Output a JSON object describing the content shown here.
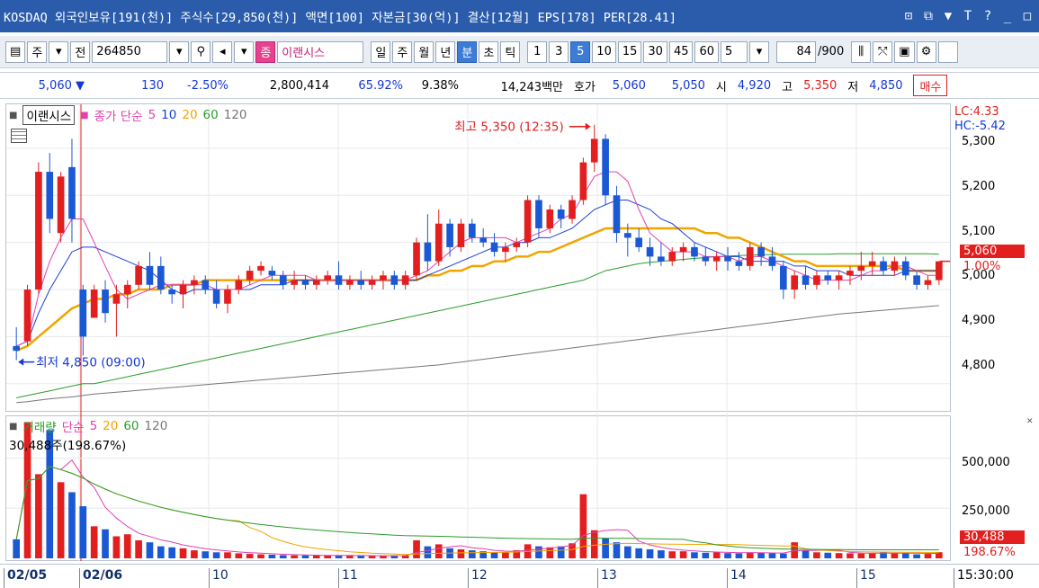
{
  "titlebar": {
    "title": "KOSDAQ 외국인보유[191(천)] 주식수[29,850(천)] 액면[100] 자본금[30(억)] 결산[12월] EPS[178] PER[28.41]",
    "icons": [
      "restore-icon",
      "copy-icon",
      "pin-icon",
      "text-icon",
      "help-icon",
      "minimize-icon",
      "maximize-icon"
    ],
    "icon_glyphs": [
      "⊡",
      "⧉",
      "▼",
      "T",
      "?",
      "_",
      "□"
    ]
  },
  "toolbar": {
    "mode1": "주",
    "mode2": "전",
    "code": "264850",
    "stock_name": "이랜시스",
    "badge": "종",
    "periods": [
      "일",
      "주",
      "월",
      "년",
      "분",
      "초",
      "틱"
    ],
    "active_period": "분",
    "intervals": [
      "1",
      "3",
      "5",
      "10",
      "15",
      "30",
      "45",
      "60"
    ],
    "active_interval": "5",
    "count_select": "5",
    "count": "84",
    "count_total": "/900"
  },
  "quote": {
    "price": "5,060",
    "change": "130",
    "change_pct": "-2.50%",
    "volume": "2,800,414",
    "ratio1": "65.92%",
    "ratio2": "9.38%",
    "amount": "14,243백만",
    "bid_label": "호가",
    "bid1": "5,060",
    "bid2": "5,050",
    "open_label": "시",
    "open": "4,920",
    "high_label": "고",
    "high": "5,350",
    "low_label": "저",
    "low": "4,850",
    "buy_label": "매수"
  },
  "price_panel": {
    "stock_label": "이랜시스",
    "ma_title": "종가 단순",
    "ma_periods": [
      "5",
      "10",
      "20",
      "60",
      "120"
    ],
    "high_annotation": "최고 5,350 (12:35)",
    "low_annotation": "최저 4,850 (09:00)",
    "lc": "LC:4.33",
    "hc": "HC:-5.42",
    "last_price": "5,060",
    "last_pct": "1.00%",
    "y_ticks": [
      "5,300",
      "5,200",
      "5,100",
      "5,000",
      "4,900",
      "4,800"
    ]
  },
  "volume_panel": {
    "title": "거래량",
    "ma_title": "단순",
    "ma_periods": [
      "5",
      "20",
      "60",
      "120"
    ],
    "summary": "30,488주(198.67%)",
    "y_ticks": [
      "500,000",
      "250,000"
    ],
    "last_volume": "30,488",
    "last_pct": "198.67%"
  },
  "date_axis": [
    "02/05",
    "02/06",
    "10",
    "11",
    "12",
    "13",
    "14",
    "15"
  ],
  "time_label": "15:30:00",
  "colors": {
    "up": "#e31e1e",
    "down": "#1b58d4",
    "ma5": "#e040b0",
    "ma10": "#1b3fd4",
    "ma20": "#f0a500",
    "ma60": "#2a9c2a",
    "ma120": "#777777"
  },
  "chart_data": {
    "type": "candlestick",
    "ylim": [
      4750,
      5380
    ],
    "candles": [
      {
        "o": 4880,
        "h": 4920,
        "l": 4850,
        "c": 4870
      },
      {
        "o": 4890,
        "h": 5010,
        "l": 4880,
        "c": 5000
      },
      {
        "o": 5000,
        "h": 5270,
        "l": 4990,
        "c": 5250
      },
      {
        "o": 5250,
        "h": 5290,
        "l": 5120,
        "c": 5150
      },
      {
        "o": 5120,
        "h": 5250,
        "l": 5100,
        "c": 5240
      },
      {
        "o": 5260,
        "h": 5320,
        "l": 5100,
        "c": 5150
      },
      {
        "o": 5000,
        "h": 5010,
        "l": 4860,
        "c": 4900
      },
      {
        "o": 4940,
        "h": 5010,
        "l": 4940,
        "c": 5000
      },
      {
        "o": 5000,
        "h": 5020,
        "l": 4930,
        "c": 4950
      },
      {
        "o": 4970,
        "h": 5010,
        "l": 4900,
        "c": 4990
      },
      {
        "o": 4990,
        "h": 5020,
        "l": 4960,
        "c": 5010
      },
      {
        "o": 5010,
        "h": 5060,
        "l": 5000,
        "c": 5050
      },
      {
        "o": 5050,
        "h": 5080,
        "l": 5000,
        "c": 5010
      },
      {
        "o": 5050,
        "h": 5070,
        "l": 4990,
        "c": 5000
      },
      {
        "o": 5000,
        "h": 5010,
        "l": 4970,
        "c": 4990
      },
      {
        "o": 4990,
        "h": 5020,
        "l": 4960,
        "c": 5010
      },
      {
        "o": 5010,
        "h": 5030,
        "l": 4990,
        "c": 5020
      },
      {
        "o": 5020,
        "h": 5030,
        "l": 4990,
        "c": 5000
      },
      {
        "o": 5000,
        "h": 5020,
        "l": 4960,
        "c": 4970
      },
      {
        "o": 4970,
        "h": 5010,
        "l": 4950,
        "c": 5000
      },
      {
        "o": 5000,
        "h": 5030,
        "l": 4990,
        "c": 5020
      },
      {
        "o": 5020,
        "h": 5050,
        "l": 5010,
        "c": 5040
      },
      {
        "o": 5040,
        "h": 5060,
        "l": 5030,
        "c": 5050
      },
      {
        "o": 5040,
        "h": 5050,
        "l": 5020,
        "c": 5030
      },
      {
        "o": 5030,
        "h": 5040,
        "l": 5000,
        "c": 5010
      },
      {
        "o": 5010,
        "h": 5040,
        "l": 5000,
        "c": 5020
      },
      {
        "o": 5020,
        "h": 5030,
        "l": 5000,
        "c": 5010
      },
      {
        "o": 5010,
        "h": 5030,
        "l": 5000,
        "c": 5020
      },
      {
        "o": 5020,
        "h": 5040,
        "l": 5010,
        "c": 5030
      },
      {
        "o": 5030,
        "h": 5060,
        "l": 5000,
        "c": 5010
      },
      {
        "o": 5010,
        "h": 5030,
        "l": 5000,
        "c": 5020
      },
      {
        "o": 5020,
        "h": 5040,
        "l": 5000,
        "c": 5010
      },
      {
        "o": 5010,
        "h": 5030,
        "l": 5000,
        "c": 5020
      },
      {
        "o": 5020,
        "h": 5040,
        "l": 5000,
        "c": 5030
      },
      {
        "o": 5030,
        "h": 5040,
        "l": 5000,
        "c": 5010
      },
      {
        "o": 5010,
        "h": 5040,
        "l": 5000,
        "c": 5030
      },
      {
        "o": 5030,
        "h": 5110,
        "l": 5020,
        "c": 5100
      },
      {
        "o": 5100,
        "h": 5160,
        "l": 5040,
        "c": 5060
      },
      {
        "o": 5060,
        "h": 5170,
        "l": 5050,
        "c": 5140
      },
      {
        "o": 5140,
        "h": 5150,
        "l": 5070,
        "c": 5090
      },
      {
        "o": 5090,
        "h": 5150,
        "l": 5080,
        "c": 5140
      },
      {
        "o": 5140,
        "h": 5150,
        "l": 5100,
        "c": 5110
      },
      {
        "o": 5110,
        "h": 5130,
        "l": 5090,
        "c": 5100
      },
      {
        "o": 5100,
        "h": 5120,
        "l": 5070,
        "c": 5080
      },
      {
        "o": 5080,
        "h": 5100,
        "l": 5060,
        "c": 5090
      },
      {
        "o": 5090,
        "h": 5110,
        "l": 5080,
        "c": 5100
      },
      {
        "o": 5100,
        "h": 5200,
        "l": 5090,
        "c": 5190
      },
      {
        "o": 5190,
        "h": 5200,
        "l": 5110,
        "c": 5130
      },
      {
        "o": 5130,
        "h": 5180,
        "l": 5120,
        "c": 5170
      },
      {
        "o": 5170,
        "h": 5180,
        "l": 5130,
        "c": 5150
      },
      {
        "o": 5150,
        "h": 5200,
        "l": 5140,
        "c": 5190
      },
      {
        "o": 5190,
        "h": 5280,
        "l": 5180,
        "c": 5270
      },
      {
        "o": 5270,
        "h": 5350,
        "l": 5250,
        "c": 5320
      },
      {
        "o": 5320,
        "h": 5330,
        "l": 5180,
        "c": 5200
      },
      {
        "o": 5200,
        "h": 5220,
        "l": 5100,
        "c": 5120
      },
      {
        "o": 5120,
        "h": 5140,
        "l": 5070,
        "c": 5110
      },
      {
        "o": 5110,
        "h": 5130,
        "l": 5080,
        "c": 5090
      },
      {
        "o": 5090,
        "h": 5110,
        "l": 5050,
        "c": 5070
      },
      {
        "o": 5070,
        "h": 5100,
        "l": 5050,
        "c": 5060
      },
      {
        "o": 5060,
        "h": 5090,
        "l": 5050,
        "c": 5080
      },
      {
        "o": 5080,
        "h": 5100,
        "l": 5060,
        "c": 5090
      },
      {
        "o": 5090,
        "h": 5100,
        "l": 5060,
        "c": 5070
      },
      {
        "o": 5070,
        "h": 5090,
        "l": 5050,
        "c": 5060
      },
      {
        "o": 5060,
        "h": 5080,
        "l": 5040,
        "c": 5070
      },
      {
        "o": 5070,
        "h": 5090,
        "l": 5040,
        "c": 5060
      },
      {
        "o": 5060,
        "h": 5080,
        "l": 5040,
        "c": 5050
      },
      {
        "o": 5050,
        "h": 5100,
        "l": 5040,
        "c": 5090
      },
      {
        "o": 5090,
        "h": 5100,
        "l": 5050,
        "c": 5070
      },
      {
        "o": 5070,
        "h": 5090,
        "l": 5040,
        "c": 5050
      },
      {
        "o": 5050,
        "h": 5060,
        "l": 4980,
        "c": 5000
      },
      {
        "o": 5000,
        "h": 5040,
        "l": 4980,
        "c": 5030
      },
      {
        "o": 5030,
        "h": 5050,
        "l": 5000,
        "c": 5010
      },
      {
        "o": 5010,
        "h": 5040,
        "l": 5000,
        "c": 5030
      },
      {
        "o": 5030,
        "h": 5040,
        "l": 5010,
        "c": 5020
      },
      {
        "o": 5020,
        "h": 5040,
        "l": 5000,
        "c": 5030
      },
      {
        "o": 5030,
        "h": 5050,
        "l": 5010,
        "c": 5040
      },
      {
        "o": 5040,
        "h": 5080,
        "l": 5020,
        "c": 5050
      },
      {
        "o": 5050,
        "h": 5080,
        "l": 5030,
        "c": 5060
      },
      {
        "o": 5060,
        "h": 5070,
        "l": 5030,
        "c": 5040
      },
      {
        "o": 5040,
        "h": 5070,
        "l": 5030,
        "c": 5060
      },
      {
        "o": 5060,
        "h": 5070,
        "l": 5020,
        "c": 5030
      },
      {
        "o": 5030,
        "h": 5040,
        "l": 5000,
        "c": 5010
      },
      {
        "o": 5010,
        "h": 5030,
        "l": 5000,
        "c": 5020
      },
      {
        "o": 5020,
        "h": 5060,
        "l": 5010,
        "c": 5060
      }
    ],
    "volumes": [
      95000,
      680000,
      420000,
      640000,
      380000,
      330000,
      260000,
      160000,
      145000,
      110000,
      120000,
      90000,
      80000,
      60000,
      55000,
      50000,
      40000,
      35000,
      30000,
      30000,
      25000,
      22000,
      20000,
      18000,
      16000,
      15000,
      15000,
      15000,
      14000,
      14000,
      13000,
      13000,
      13000,
      13000,
      14000,
      15000,
      90000,
      60000,
      70000,
      50000,
      45000,
      40000,
      35000,
      30000,
      30000,
      40000,
      70000,
      60000,
      55000,
      60000,
      75000,
      320000,
      140000,
      100000,
      80000,
      60000,
      50000,
      45000,
      40000,
      35000,
      35000,
      30000,
      28000,
      30000,
      26000,
      25000,
      30000,
      28000,
      26000,
      24000,
      80000,
      40000,
      30000,
      28000,
      26000,
      25000,
      24000,
      26000,
      30000,
      25000,
      26000,
      20000,
      22000,
      30488
    ],
    "ma5": [
      4880,
      4890,
      4990,
      5060,
      5110,
      5150,
      5150,
      5100,
      5050,
      5000,
      4980,
      4990,
      5000,
      5010,
      5010,
      5010,
      5010,
      5010,
      5000,
      5000,
      5000,
      5010,
      5020,
      5030,
      5030,
      5030,
      5030,
      5020,
      5020,
      5020,
      5020,
      5020,
      5020,
      5020,
      5020,
      5020,
      5030,
      5040,
      5060,
      5080,
      5100,
      5110,
      5110,
      5110,
      5110,
      5100,
      5110,
      5120,
      5130,
      5150,
      5160,
      5200,
      5240,
      5250,
      5250,
      5230,
      5170,
      5120,
      5100,
      5080,
      5080,
      5080,
      5070,
      5070,
      5070,
      5060,
      5070,
      5070,
      5060,
      5050,
      5040,
      5030,
      5020,
      5020,
      5020,
      5020,
      5030,
      5040,
      5040,
      5050,
      5050,
      5040,
      5030,
      5030
    ],
    "ma10": [
      4880,
      4890,
      4950,
      5000,
      5040,
      5080,
      5090,
      5090,
      5080,
      5070,
      5060,
      5050,
      5040,
      5020,
      5000,
      4990,
      5000,
      5000,
      5000,
      5000,
      5000,
      5000,
      5010,
      5010,
      5010,
      5020,
      5020,
      5020,
      5020,
      5020,
      5020,
      5020,
      5020,
      5020,
      5020,
      5020,
      5020,
      5030,
      5040,
      5050,
      5060,
      5070,
      5080,
      5090,
      5090,
      5100,
      5100,
      5110,
      5110,
      5120,
      5130,
      5150,
      5170,
      5180,
      5190,
      5190,
      5180,
      5170,
      5150,
      5140,
      5120,
      5100,
      5090,
      5080,
      5070,
      5070,
      5060,
      5060,
      5060,
      5060,
      5050,
      5050,
      5040,
      5040,
      5040,
      5030,
      5030,
      5030,
      5030,
      5030,
      5040,
      5040,
      5040,
      5040
    ],
    "ma20": [
      4870,
      4880,
      4900,
      4920,
      4940,
      4960,
      4970,
      4980,
      4980,
      4990,
      4990,
      5000,
      5000,
      5000,
      5010,
      5010,
      5010,
      5020,
      5020,
      5020,
      5020,
      5020,
      5020,
      5020,
      5020,
      5020,
      5020,
      5020,
      5020,
      5020,
      5020,
      5020,
      5020,
      5020,
      5020,
      5020,
      5020,
      5030,
      5030,
      5040,
      5040,
      5050,
      5050,
      5060,
      5060,
      5070,
      5070,
      5080,
      5080,
      5090,
      5100,
      5110,
      5120,
      5130,
      5130,
      5130,
      5130,
      5130,
      5130,
      5130,
      5130,
      5130,
      5120,
      5120,
      5110,
      5110,
      5100,
      5090,
      5080,
      5070,
      5060,
      5060,
      5050,
      5050,
      5050,
      5050,
      5050,
      5050,
      5050,
      5050,
      5040,
      5040,
      5040,
      5040
    ],
    "ma60": [
      4770,
      4775,
      4780,
      4785,
      4790,
      4795,
      4800,
      4800,
      4805,
      4810,
      4815,
      4820,
      4825,
      4830,
      4835,
      4840,
      4845,
      4850,
      4855,
      4860,
      4865,
      4870,
      4875,
      4880,
      4885,
      4890,
      4895,
      4900,
      4905,
      4910,
      4915,
      4920,
      4925,
      4930,
      4935,
      4940,
      4945,
      4950,
      4955,
      4960,
      4965,
      4970,
      4975,
      4980,
      4985,
      4990,
      4995,
      5000,
      5005,
      5010,
      5015,
      5020,
      5030,
      5040,
      5045,
      5050,
      5055,
      5058,
      5060,
      5062,
      5064,
      5066,
      5068,
      5070,
      5071,
      5072,
      5073,
      5074,
      5074,
      5075,
      5075,
      5075,
      5075,
      5075,
      5076,
      5076,
      5076,
      5076,
      5076,
      5076,
      5076,
      5076,
      5076,
      5075
    ],
    "ma120": [
      4760,
      4762,
      4765,
      4768,
      4770,
      4772,
      4775,
      4778,
      4780,
      4782,
      4784,
      4786,
      4788,
      4790,
      4792,
      4794,
      4796,
      4798,
      4800,
      4802,
      4804,
      4806,
      4808,
      4810,
      4812,
      4814,
      4816,
      4818,
      4820,
      4822,
      4824,
      4826,
      4828,
      4830,
      4832,
      4834,
      4836,
      4838,
      4840,
      4843,
      4846,
      4849,
      4852,
      4855,
      4858,
      4861,
      4864,
      4867,
      4870,
      4873,
      4876,
      4879,
      4882,
      4885,
      4888,
      4891,
      4894,
      4897,
      4900,
      4903,
      4906,
      4909,
      4912,
      4915,
      4918,
      4921,
      4924,
      4927,
      4930,
      4933,
      4936,
      4939,
      4942,
      4945,
      4948,
      4950,
      4952,
      4954,
      4956,
      4958,
      4960,
      4962,
      4964,
      4966
    ]
  }
}
